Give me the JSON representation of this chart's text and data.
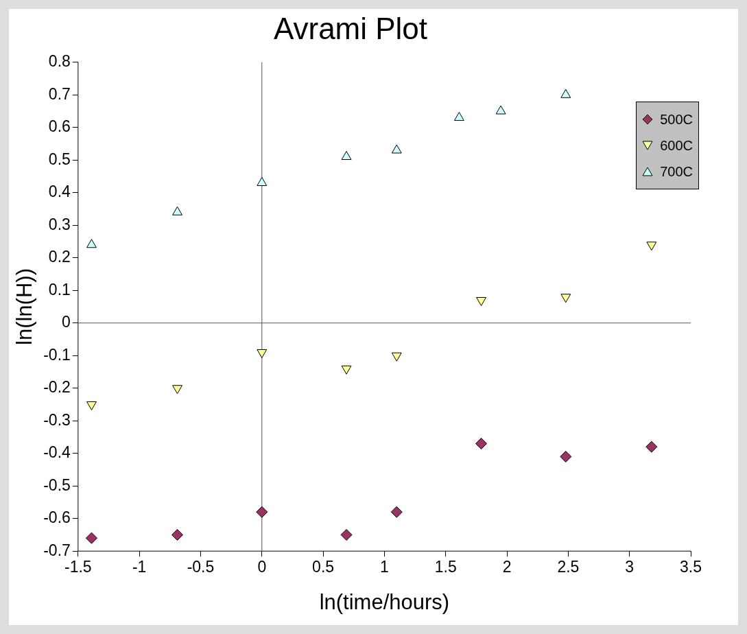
{
  "chart_data": {
    "type": "scatter",
    "title": "Avrami Plot",
    "xlabel": "ln(time/hours)",
    "ylabel": "ln(ln(H))",
    "xlim": [
      -1.5,
      3.5
    ],
    "xticks": [
      -1.5,
      -1,
      -0.5,
      0,
      0.5,
      1,
      1.5,
      2,
      2.5,
      3,
      3.5
    ],
    "ylim": [
      -0.7,
      0.8
    ],
    "yticks": [
      -0.7,
      -0.6,
      -0.5,
      -0.4,
      -0.3,
      -0.2,
      -0.1,
      0,
      0.1,
      0.2,
      0.3,
      0.4,
      0.5,
      0.6,
      0.7,
      0.8
    ],
    "legend": "top right",
    "series": [
      {
        "name": "500C",
        "color": "#993366",
        "marker": "diamond",
        "x": [
          -1.39,
          -0.69,
          0,
          0.69,
          1.1,
          1.79,
          2.48,
          3.18
        ],
        "values": [
          -0.66,
          -0.65,
          -0.58,
          -0.65,
          -0.58,
          -0.37,
          -0.41,
          -0.38
        ]
      },
      {
        "name": "600C",
        "color": "#ffff99",
        "marker": "triangle_down",
        "x": [
          -1.39,
          -0.69,
          0,
          0.69,
          1.1,
          1.79,
          2.48,
          3.18
        ],
        "values": [
          -0.25,
          -0.2,
          -0.09,
          -0.14,
          -0.1,
          0.07,
          0.08,
          0.24
        ]
      },
      {
        "name": "700C",
        "color": "#ccffff",
        "marker": "triangle",
        "x": [
          -1.39,
          -0.69,
          0,
          0.69,
          1.1,
          1.61,
          1.95,
          2.48
        ],
        "values": [
          0.24,
          0.34,
          0.43,
          0.51,
          0.53,
          0.63,
          0.65,
          0.7
        ]
      }
    ]
  }
}
